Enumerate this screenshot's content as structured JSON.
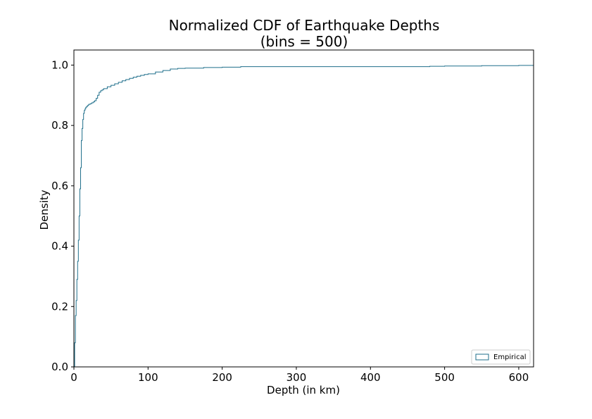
{
  "chart_data": {
    "type": "area",
    "title_line1": "Normalized CDF of Earthquake Depths",
    "title_line2": "(bins = 500)",
    "xlabel": "Depth (in km)",
    "ylabel": "Density",
    "xlim": [
      0,
      620
    ],
    "ylim": [
      0,
      1.05
    ],
    "xticks": [
      0,
      100,
      200,
      300,
      400,
      500,
      600
    ],
    "xtick_labels": [
      "0",
      "100",
      "200",
      "300",
      "400",
      "500",
      "600"
    ],
    "yticks": [
      0.0,
      0.2,
      0.4,
      0.6,
      0.8,
      1.0
    ],
    "ytick_labels": [
      "0.0",
      "0.2",
      "0.4",
      "0.6",
      "0.8",
      "1.0"
    ],
    "grid": false,
    "legend_position": "lower-right",
    "series": [
      {
        "name": "Empirical",
        "color": "#1f6f8b",
        "x": [
          0,
          1,
          2,
          3,
          4,
          5,
          6,
          7,
          8,
          9,
          10,
          11,
          12,
          13,
          14,
          15,
          16,
          17,
          18,
          19,
          20,
          22,
          24,
          26,
          28,
          30,
          32,
          34,
          36,
          38,
          40,
          45,
          50,
          55,
          60,
          65,
          70,
          75,
          80,
          85,
          90,
          95,
          100,
          110,
          120,
          130,
          140,
          150,
          175,
          200,
          225,
          250,
          300,
          350,
          400,
          450,
          480,
          500,
          550,
          600,
          620
        ],
        "y": [
          0.0,
          0.08,
          0.17,
          0.22,
          0.29,
          0.35,
          0.42,
          0.5,
          0.59,
          0.66,
          0.75,
          0.79,
          0.82,
          0.84,
          0.85,
          0.855,
          0.86,
          0.862,
          0.865,
          0.867,
          0.87,
          0.872,
          0.875,
          0.878,
          0.882,
          0.89,
          0.9,
          0.91,
          0.915,
          0.918,
          0.922,
          0.928,
          0.933,
          0.938,
          0.943,
          0.948,
          0.952,
          0.956,
          0.96,
          0.963,
          0.966,
          0.969,
          0.971,
          0.977,
          0.982,
          0.987,
          0.989,
          0.99,
          0.992,
          0.993,
          0.995,
          0.995,
          0.995,
          0.995,
          0.995,
          0.995,
          0.996,
          0.997,
          0.998,
          0.999,
          1.0
        ]
      }
    ]
  }
}
